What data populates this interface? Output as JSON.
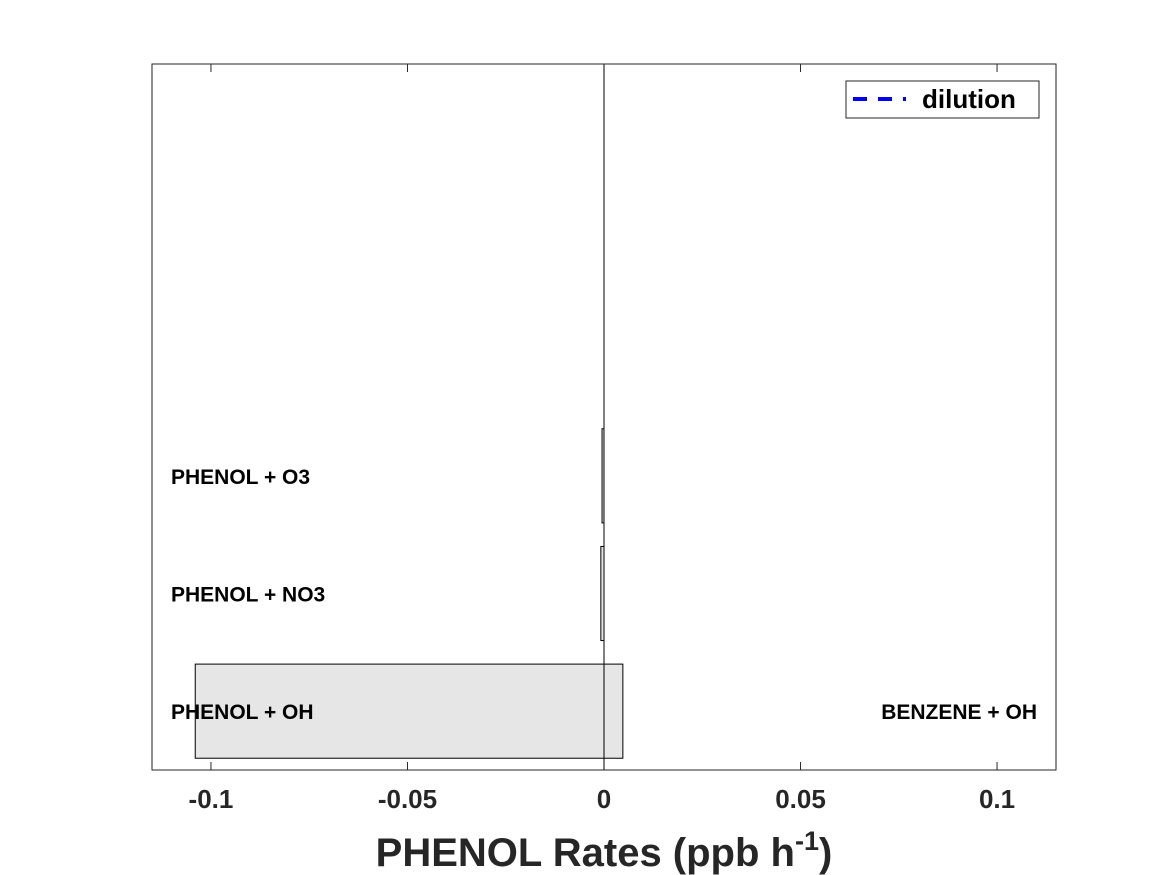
{
  "chart_data": {
    "type": "bar",
    "orientation": "horizontal",
    "stacked": true,
    "categories": [
      "PHENOL + OH",
      "PHENOL + NO3",
      "PHENOL + O3"
    ],
    "production_labels": [
      "BENZENE + OH",
      "",
      ""
    ],
    "series": [
      {
        "name": "",
        "role": "loss",
        "values": [
          -0.104,
          -0.0008,
          -0.0005
        ]
      },
      {
        "name": "",
        "role": "production",
        "values": [
          0.0048,
          0,
          0
        ]
      }
    ],
    "xlabel": {
      "main": "PHENOL Rates (ppb h",
      "superscript": "-1",
      "close": ")"
    },
    "xlim": [
      -0.115,
      0.115
    ],
    "xticks": [
      -0.1,
      -0.05,
      0,
      0.05,
      0.1
    ],
    "xtick_labels": [
      "-0.1",
      "-0.05",
      "0",
      "0.05",
      "0.1"
    ],
    "legend": {
      "entries": [
        "dilution"
      ],
      "placement": "top-right",
      "line_style": "dashed",
      "color": "#0000ff"
    },
    "bar_fill": "#e6e6e6",
    "grid": false
  }
}
